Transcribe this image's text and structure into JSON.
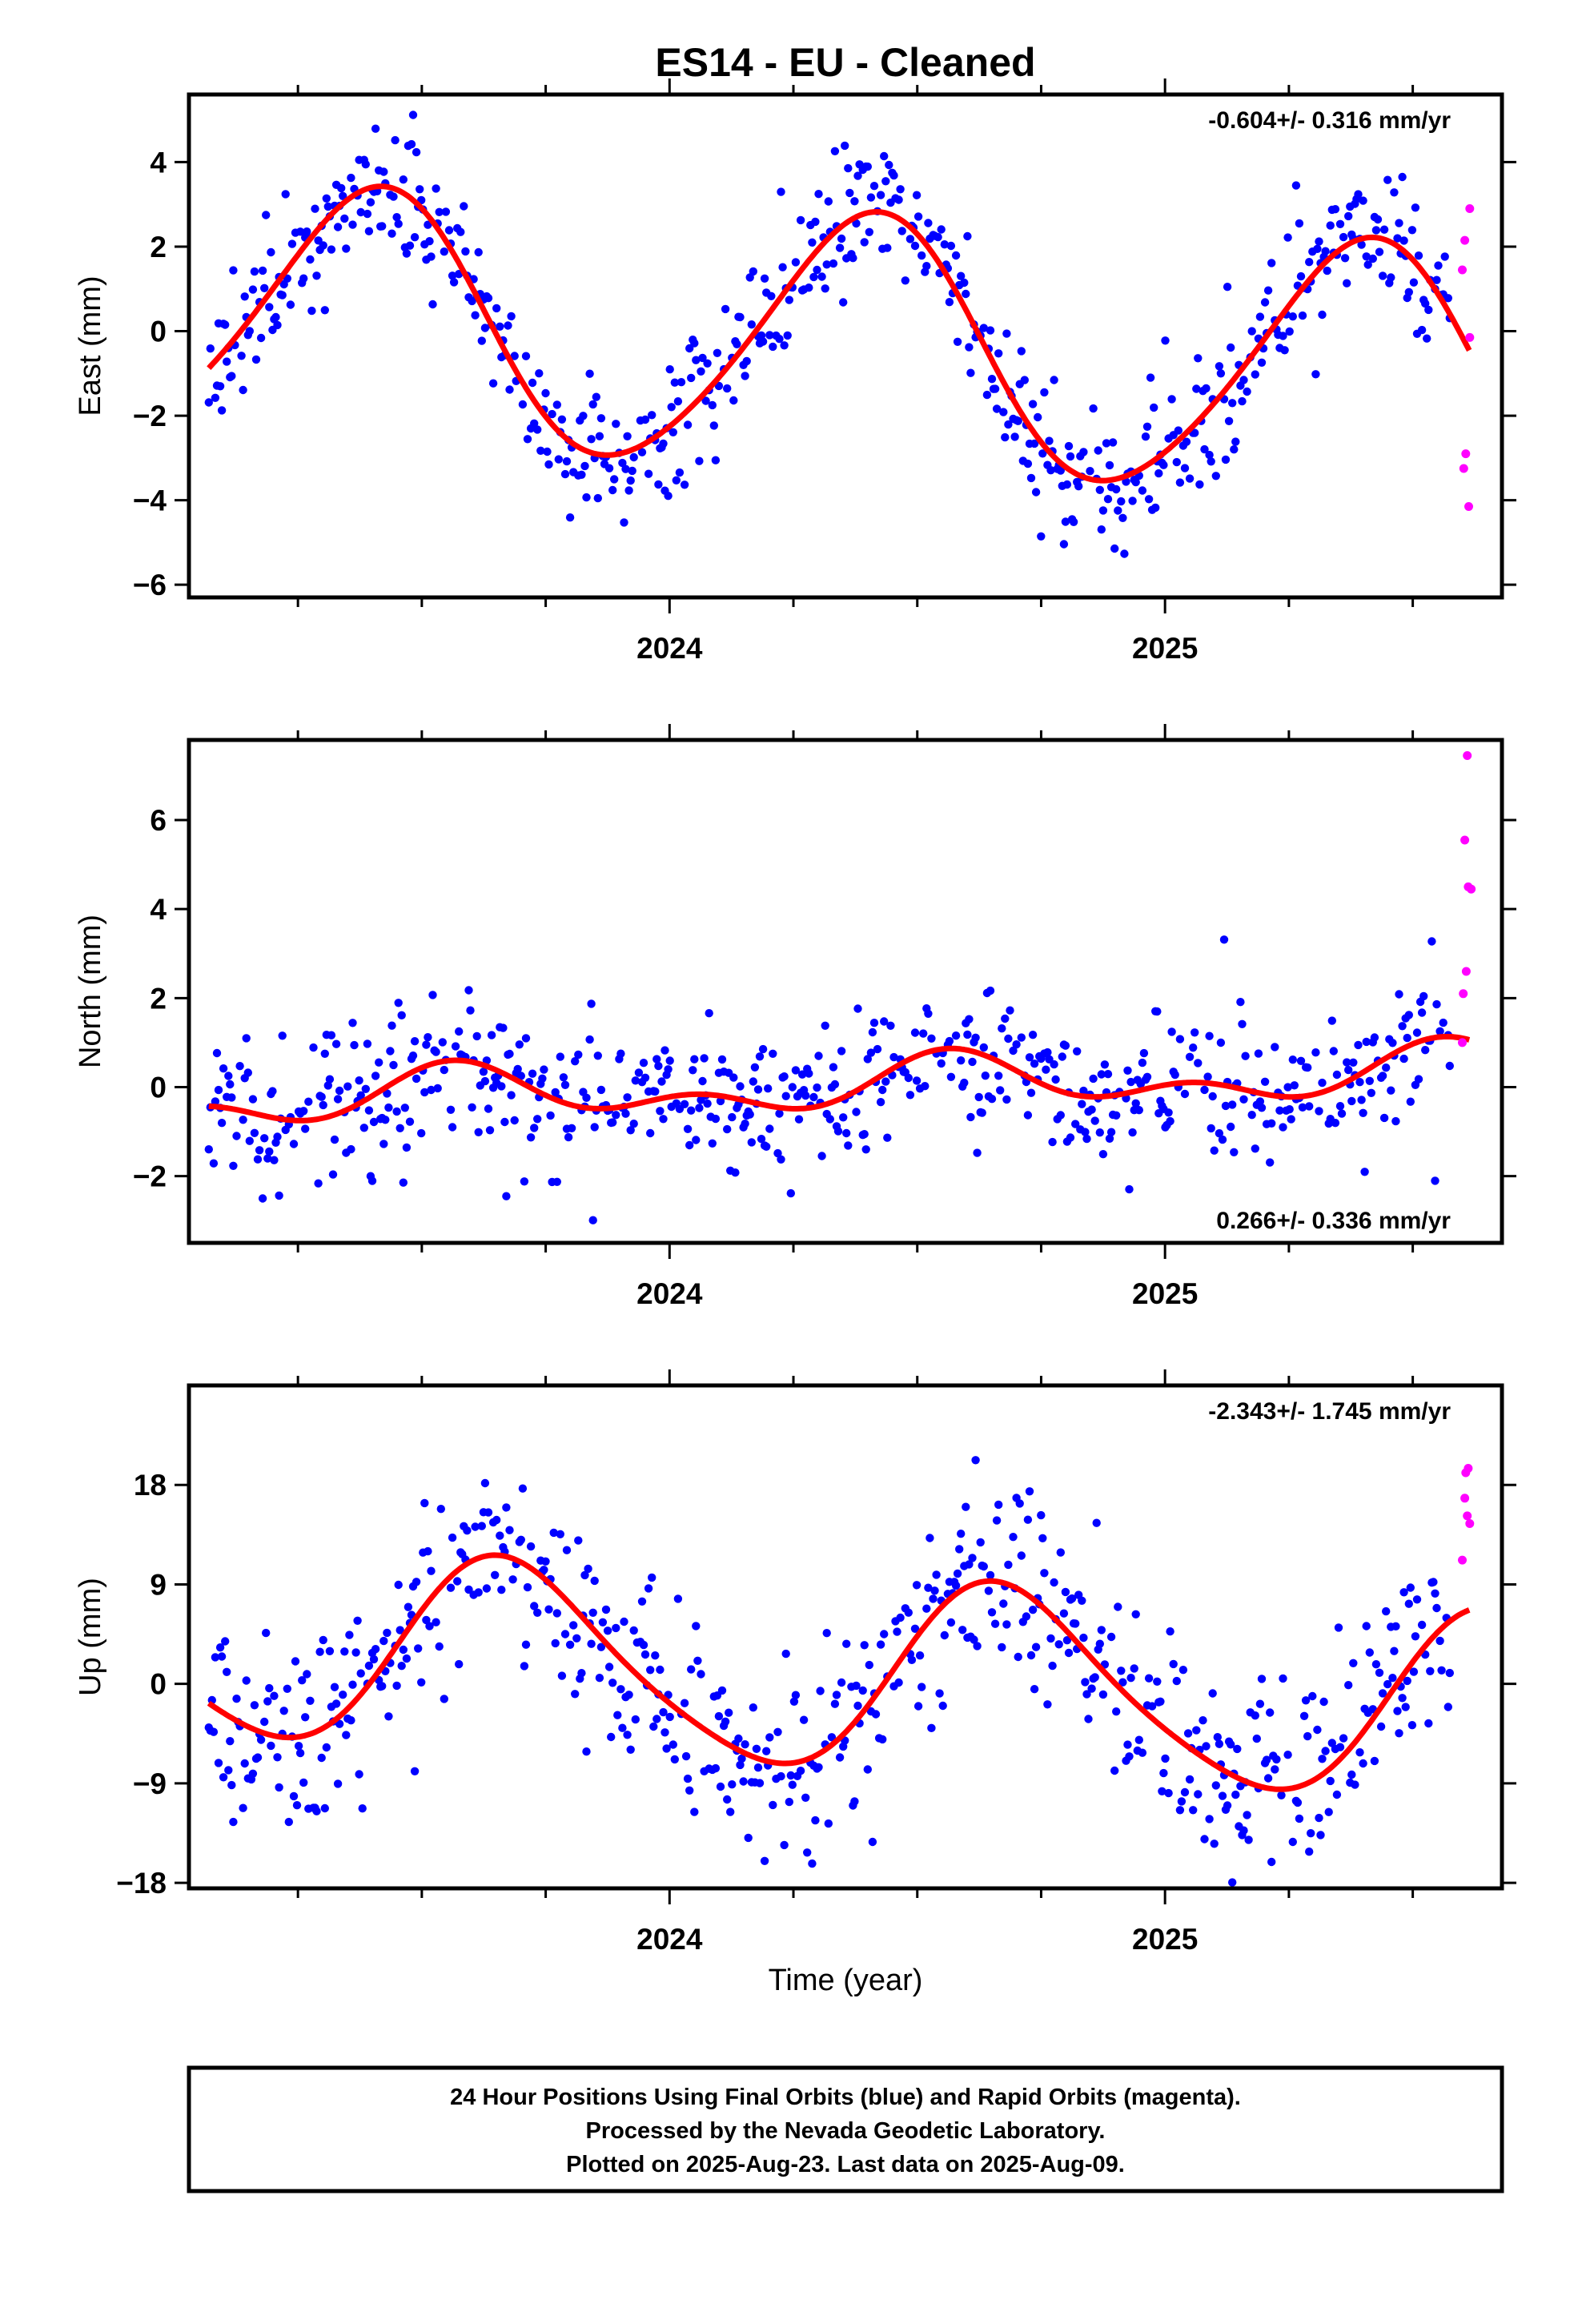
{
  "chart_data": {
    "type": "scatter",
    "title": "ES14  - EU - Cleaned",
    "xlabel": "Time (year)",
    "xlim": [
      2023.03,
      2025.68
    ],
    "x_major_ticks": [
      2024,
      2025
    ],
    "x_minor_tick_step": 0.25,
    "marker_colors": {
      "final": "#0000ff",
      "rapid": "#ff00ff"
    },
    "model_line_color": "#ff0000",
    "panels": [
      {
        "id": "east",
        "ylabel": "East (mm)",
        "ylim": [
          -6.3,
          5.6
        ],
        "yticks": [
          4,
          2,
          0,
          -2,
          -4,
          -6
        ],
        "ytick_labels": [
          "4",
          "2",
          "0",
          "−2",
          "−4",
          "−6"
        ],
        "rate": "-0.604+/- 0.316 mm/yr",
        "rate_position": "top-right",
        "model": {
          "offset": -0.3,
          "trend": -0.604,
          "annual_amp": 3.0,
          "annual_phase_peak": 2023.4,
          "semiannual_amp": 0.3,
          "semiannual_phase_peak": 2023.48
        },
        "noise_sd": 0.85,
        "seed": 11,
        "rapid_points": [
          {
            "x": 2025.615,
            "y": 2.9
          },
          {
            "x": 2025.605,
            "y": 2.15
          },
          {
            "x": 2025.6,
            "y": 1.45
          },
          {
            "x": 2025.615,
            "y": -0.15
          },
          {
            "x": 2025.607,
            "y": -2.9
          },
          {
            "x": 2025.603,
            "y": -3.25
          },
          {
            "x": 2025.613,
            "y": -4.15
          }
        ]
      },
      {
        "id": "north",
        "ylabel": "North (mm)",
        "ylim": [
          -3.5,
          7.8
        ],
        "yticks": [
          6,
          4,
          2,
          0,
          -2
        ],
        "ytick_labels": [
          "6",
          "4",
          "2",
          "0",
          "−2"
        ],
        "rate": "0.266+/- 0.336 mm/yr",
        "rate_position": "bottom-right",
        "model": {
          "offset": 0.0,
          "trend": 0.266,
          "annual_amp": 0.45,
          "annual_phase_peak": 2023.58,
          "semiannual_amp": 0.35,
          "semiannual_phase_peak": 2023.56
        },
        "noise_sd": 0.75,
        "seed": 23,
        "rapid_points": [
          {
            "x": 2025.61,
            "y": 7.45
          },
          {
            "x": 2025.605,
            "y": 5.55
          },
          {
            "x": 2025.612,
            "y": 4.5
          },
          {
            "x": 2025.618,
            "y": 4.45
          },
          {
            "x": 2025.608,
            "y": 2.6
          },
          {
            "x": 2025.602,
            "y": 2.1
          },
          {
            "x": 2025.6,
            "y": 1.0
          }
        ]
      },
      {
        "id": "up",
        "ylabel": "Up (mm)",
        "ylim": [
          -18.5,
          27
        ],
        "yticks": [
          18,
          9,
          0,
          -9,
          -18
        ],
        "ytick_labels": [
          "18",
          "9",
          "0",
          "−9",
          "−18"
        ],
        "rate": "-2.343+/- 1.745 mm/yr",
        "rate_position": "top-right",
        "model": {
          "offset": 0.8,
          "trend": -2.343,
          "annual_amp": 8.5,
          "annual_phase_peak": 2023.68,
          "semiannual_amp": 1.2,
          "semiannual_phase_peak": 2023.6
        },
        "noise_sd": 4.4,
        "seed": 37,
        "rapid_points": [
          {
            "x": 2025.612,
            "y": 19.5
          },
          {
            "x": 2025.607,
            "y": 19.1
          },
          {
            "x": 2025.605,
            "y": 16.8
          },
          {
            "x": 2025.61,
            "y": 15.2
          },
          {
            "x": 2025.615,
            "y": 14.5
          },
          {
            "x": 2025.6,
            "y": 11.2
          }
        ]
      }
    ]
  },
  "footer": {
    "lines": [
      "24 Hour Positions Using Final Orbits (blue) and Rapid Orbits (magenta).",
      "Processed by the Nevada Geodetic Laboratory.",
      "Plotted on 2025-Aug-23. Last data on 2025-Aug-09."
    ]
  }
}
